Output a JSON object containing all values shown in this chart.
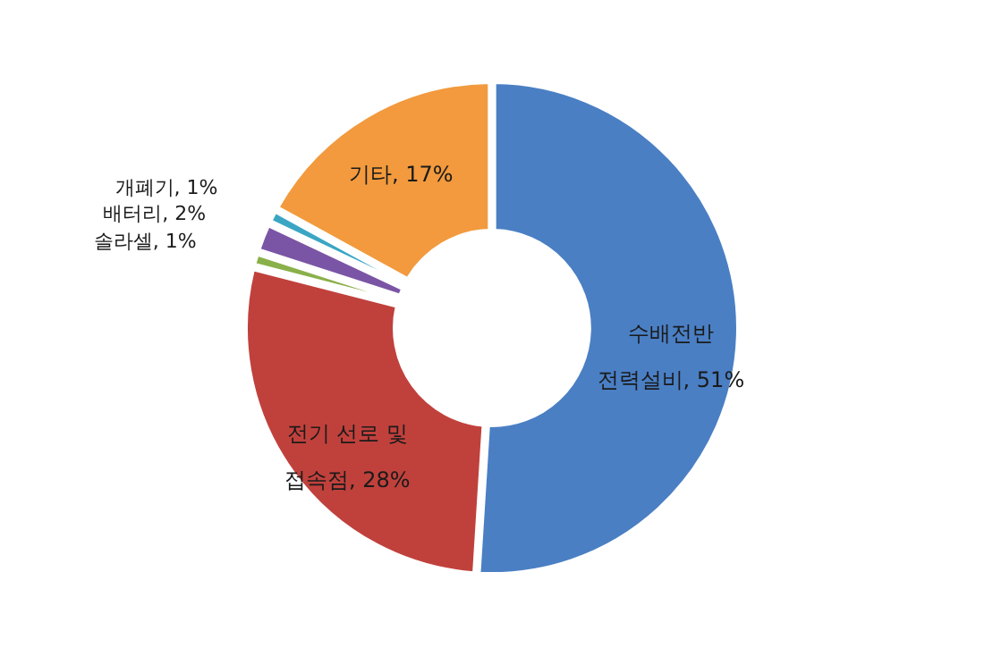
{
  "chart_data": {
    "type": "donut",
    "categories": [
      "수배전반 전력설비, 51%",
      "전기 선로 및 접속점, 28%",
      "솔라셀, 1%",
      "배터리, 2%",
      "개폐기, 1%",
      "기타, 17%"
    ],
    "values": [
      51,
      28,
      1,
      2,
      1,
      17
    ],
    "colors": [
      "#4a7fc4",
      "#c0413c",
      "#8ab04a",
      "#7b55a5",
      "#3aa6c4",
      "#f29a3d"
    ],
    "legend": false
  }
}
